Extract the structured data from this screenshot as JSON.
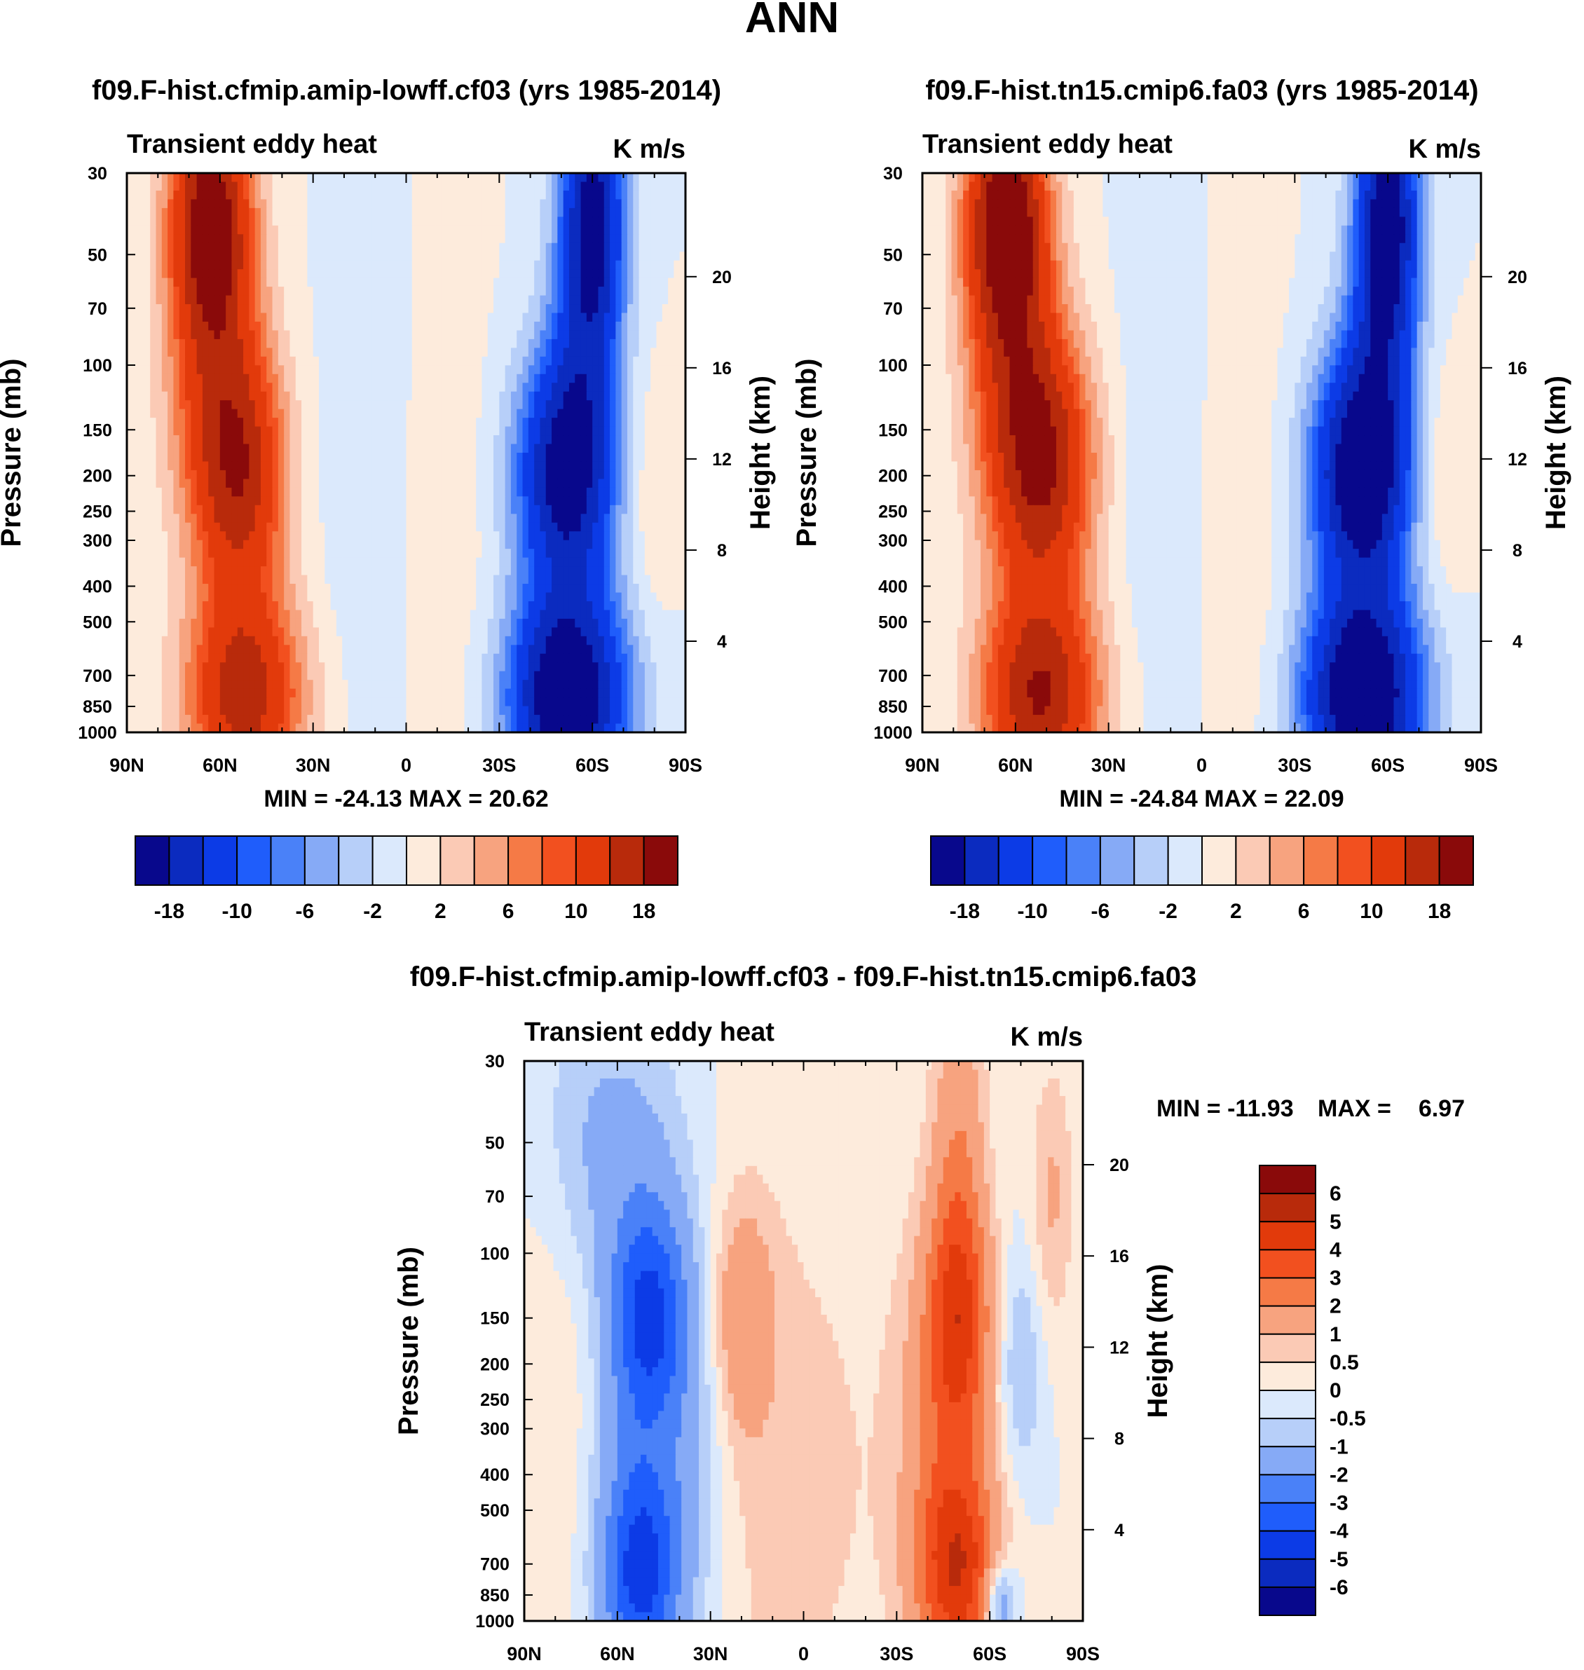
{
  "figure_title": "ANN",
  "colors": {
    "main_scale": [
      "#08088c",
      "#0b2bbf",
      "#0c3be6",
      "#1f5dfb",
      "#4a81f8",
      "#86aaf6",
      "#b7cff9",
      "#dbe9fc",
      "#fdebdc",
      "#fbcab5",
      "#f7a37f",
      "#f57a46",
      "#f2501f",
      "#e23a0b",
      "#b82a0b",
      "#8a0a0a"
    ],
    "diff_scale": [
      "#08088c",
      "#0b2bbf",
      "#0c3be6",
      "#1f5dfb",
      "#4a81f8",
      "#86aaf6",
      "#b7cff9",
      "#dbe9fc",
      "#fdebdc",
      "#fbcab5",
      "#f7a37f",
      "#f57a46",
      "#f2501f",
      "#e23a0b",
      "#b82a0b",
      "#8a0a0a"
    ]
  },
  "chart_data": [
    {
      "id": "panel1",
      "type": "heatmap",
      "title": "f09.F-hist.cfmip.amip-lowff.cf03 (yrs 1985-2014)",
      "left_label": "Transient eddy heat",
      "right_label": "K m/s",
      "xlabel": "",
      "ylabel": "Pressure (mb)",
      "y2label": "Height (km)",
      "xticks": [
        "90N",
        "60N",
        "30N",
        "0",
        "30S",
        "60S",
        "90S"
      ],
      "yticks": [
        "30",
        "50",
        "70",
        "100",
        "150",
        "200",
        "250",
        "300",
        "400",
        "500",
        "700",
        "850",
        "1000"
      ],
      "y2ticks": [
        "20",
        "16",
        "12",
        "8",
        "4"
      ],
      "xlim": [
        90,
        -90
      ],
      "ylim": [
        1000,
        30
      ],
      "min_label": "MIN = -24.13",
      "max_label": "MAX =  20.62",
      "min": -24.13,
      "max": 20.62,
      "colorbar_labels": [
        "-18",
        "-10",
        "-6",
        "-2",
        "2",
        "6",
        "10",
        "18"
      ],
      "levels": [
        -18,
        -14,
        -10,
        -8,
        -6,
        -4,
        -2,
        0,
        2,
        4,
        6,
        8,
        10,
        14,
        18
      ],
      "features": [
        {
          "lat": 63,
          "p": 40,
          "amp": 20.6,
          "slat": 9,
          "sp": 0.55
        },
        {
          "lat": 62,
          "p": 120,
          "amp": 8,
          "slat": 11,
          "sp": 0.7
        },
        {
          "lat": 53,
          "p": 200,
          "amp": 14,
          "slat": 10,
          "sp": 0.55
        },
        {
          "lat": 52,
          "p": 800,
          "amp": 16,
          "slat": 13,
          "sp": 0.45
        },
        {
          "lat": -60,
          "p": 40,
          "amp": -20,
          "slat": 7,
          "sp": 0.6
        },
        {
          "lat": -56,
          "p": 140,
          "amp": -8,
          "slat": 9,
          "sp": 0.7
        },
        {
          "lat": -50,
          "p": 200,
          "amp": -16,
          "slat": 11,
          "sp": 0.5
        },
        {
          "lat": -52,
          "p": 800,
          "amp": -24.1,
          "slat": 13,
          "sp": 0.45
        },
        {
          "lat": 15,
          "p": 200,
          "amp": -1.3,
          "slat": 10,
          "sp": 1.3
        },
        {
          "lat": -15,
          "p": 300,
          "amp": 1.2,
          "slat": 10,
          "sp": 1.2
        },
        {
          "lat": -80,
          "p": 220,
          "amp": 2.2,
          "slat": 6,
          "sp": 0.5
        }
      ]
    },
    {
      "id": "panel2",
      "type": "heatmap",
      "title": "f09.F-hist.tn15.cmip6.fa03 (yrs 1985-2014)",
      "left_label": "Transient eddy heat",
      "right_label": "K m/s",
      "xlabel": "",
      "ylabel": "Pressure (mb)",
      "y2label": "Height (km)",
      "xticks": [
        "90N",
        "60N",
        "30N",
        "0",
        "30S",
        "60S",
        "90S"
      ],
      "yticks": [
        "30",
        "50",
        "70",
        "100",
        "150",
        "200",
        "250",
        "300",
        "400",
        "500",
        "700",
        "850",
        "1000"
      ],
      "y2ticks": [
        "20",
        "16",
        "12",
        "8",
        "4"
      ],
      "xlim": [
        90,
        -90
      ],
      "ylim": [
        1000,
        30
      ],
      "min_label": "MIN = -24.84",
      "max_label": "MAX =  22.09",
      "min": -24.84,
      "max": 22.09,
      "colorbar_labels": [
        "-18",
        "-10",
        "-6",
        "-2",
        "2",
        "6",
        "10",
        "18"
      ],
      "levels": [
        -18,
        -14,
        -10,
        -8,
        -6,
        -4,
        -2,
        0,
        2,
        4,
        6,
        8,
        10,
        14,
        18
      ],
      "features": [
        {
          "lat": 63,
          "p": 40,
          "amp": 22,
          "slat": 9,
          "sp": 0.55
        },
        {
          "lat": 60,
          "p": 120,
          "amp": 9,
          "slat": 11,
          "sp": 0.7
        },
        {
          "lat": 50,
          "p": 190,
          "amp": 15,
          "slat": 11,
          "sp": 0.55
        },
        {
          "lat": 52,
          "p": 800,
          "amp": 18,
          "slat": 13,
          "sp": 0.45
        },
        {
          "lat": -60,
          "p": 40,
          "amp": -21,
          "slat": 7,
          "sp": 0.6
        },
        {
          "lat": -56,
          "p": 140,
          "amp": -9,
          "slat": 9,
          "sp": 0.7
        },
        {
          "lat": -50,
          "p": 200,
          "amp": -18,
          "slat": 11,
          "sp": 0.5
        },
        {
          "lat": -52,
          "p": 800,
          "amp": -24.8,
          "slat": 13,
          "sp": 0.45
        },
        {
          "lat": 15,
          "p": 200,
          "amp": -1.3,
          "slat": 10,
          "sp": 1.3
        },
        {
          "lat": -15,
          "p": 300,
          "amp": 1.2,
          "slat": 10,
          "sp": 1.2
        },
        {
          "lat": -78,
          "p": 200,
          "amp": 2.5,
          "slat": 6,
          "sp": 0.5
        }
      ]
    },
    {
      "id": "panel3",
      "type": "heatmap",
      "title": "f09.F-hist.cfmip.amip-lowff.cf03 - f09.F-hist.tn15.cmip6.fa03",
      "left_label": "Transient eddy heat",
      "right_label": "K m/s",
      "xlabel": "",
      "ylabel": "Pressure (mb)",
      "y2label": "Height (km)",
      "xticks": [
        "90N",
        "60N",
        "30N",
        "0",
        "30S",
        "60S",
        "90S"
      ],
      "yticks": [
        "30",
        "50",
        "70",
        "100",
        "150",
        "200",
        "250",
        "300",
        "400",
        "500",
        "700",
        "850",
        "1000"
      ],
      "y2ticks": [
        "20",
        "16",
        "12",
        "8",
        "4"
      ],
      "xlim": [
        90,
        -90
      ],
      "ylim": [
        1000,
        30
      ],
      "min_label": "MIN = -11.93",
      "max_label": "MAX =",
      "max_value": "6.97",
      "min": -11.93,
      "max": 6.97,
      "colorbar_labels": [
        "6",
        "5",
        "4",
        "3",
        "2",
        "1",
        "0.5",
        "0",
        "-0.5",
        "-1",
        "-2",
        "-3",
        "-4",
        "-5",
        "-6"
      ],
      "levels": [
        -6,
        -5,
        -4,
        -3,
        -2,
        -1,
        -0.5,
        0,
        0.5,
        1,
        2,
        3,
        4,
        5,
        6
      ],
      "features": [
        {
          "lat": 50,
          "p": 150,
          "amp": -3.2,
          "slat": 8,
          "sp": 0.45
        },
        {
          "lat": 50,
          "p": 110,
          "amp": -1.2,
          "slat": 10,
          "sp": 1.0
        },
        {
          "lat": 52,
          "p": 750,
          "amp": -3.6,
          "slat": 8,
          "sp": 0.45
        },
        {
          "lat": 55,
          "p": 550,
          "amp": -1.2,
          "slat": 12,
          "sp": 0.8
        },
        {
          "lat": 68,
          "p": 50,
          "amp": -1.0,
          "slat": 12,
          "sp": 0.7
        },
        {
          "lat": 35,
          "p": 300,
          "amp": -1.0,
          "slat": 8,
          "sp": 1.0
        },
        {
          "lat": 20,
          "p": 150,
          "amp": 1.6,
          "slat": 7,
          "sp": 0.5
        },
        {
          "lat": -50,
          "p": 150,
          "amp": 3.4,
          "slat": 7,
          "sp": 0.55
        },
        {
          "lat": -50,
          "p": 740,
          "amp": 4.2,
          "slat": 9,
          "sp": 0.45
        },
        {
          "lat": -45,
          "p": 300,
          "amp": 1.6,
          "slat": 10,
          "sp": 0.9
        },
        {
          "lat": -50,
          "p": 45,
          "amp": 1.5,
          "slat": 6,
          "sp": 0.8
        },
        {
          "lat": -80,
          "p": 70,
          "amp": 1.1,
          "slat": 5,
          "sp": 0.6
        },
        {
          "lat": -70,
          "p": 200,
          "amp": -1.1,
          "slat": 5,
          "sp": 0.5
        },
        {
          "lat": -63,
          "p": 900,
          "amp": -2.5,
          "slat": 4,
          "sp": 0.2
        },
        {
          "lat": 5,
          "p": 400,
          "amp": 0.7,
          "slat": 25,
          "sp": 1.5
        },
        {
          "lat": 80,
          "p": 300,
          "amp": 0.6,
          "slat": 10,
          "sp": 1.0
        }
      ]
    }
  ]
}
